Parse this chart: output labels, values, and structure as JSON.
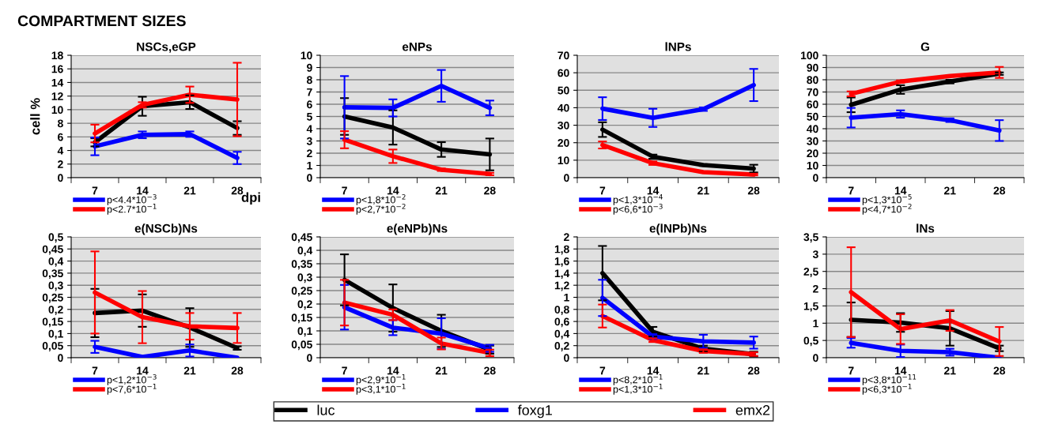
{
  "chart_data": [
    {
      "type": "line",
      "title": "NSCs,eGP",
      "xlabel": "dpi",
      "ylabel": "cell %",
      "categories": [
        "7",
        "14",
        "21",
        "28"
      ],
      "ylim": [
        0,
        18
      ],
      "yticks": [
        0,
        2,
        4,
        6,
        8,
        10,
        12,
        14,
        16,
        18
      ],
      "grid": "y",
      "legend": "bottom",
      "marker": "none",
      "line_style": "solid",
      "annotations": [
        "COMPARTMENT SIZES",
        "p<4.4*10$^{−3}$",
        "p<2.7*10$^{−1}$"
      ],
      "series": [
        {
          "name": "luc",
          "color": "#000000",
          "values": [
            5.2,
            10.5,
            11.1,
            7.3
          ],
          "errors": [
            0.6,
            1.4,
            1.0,
            1.0
          ]
        },
        {
          "name": "foxg1",
          "color": "#0000ff",
          "values": [
            4.6,
            6.3,
            6.4,
            2.9
          ],
          "errors": [
            1.3,
            0.5,
            0.4,
            0.9
          ]
        },
        {
          "name": "emx2",
          "color": "#ff0000",
          "values": [
            6.5,
            10.7,
            12.2,
            11.5
          ],
          "errors": [
            1.3,
            0.4,
            1.2,
            5.4
          ]
        }
      ]
    },
    {
      "type": "line",
      "title": "eNPs",
      "categories": [
        "7",
        "14",
        "21",
        "28"
      ],
      "ylim": [
        0,
        10
      ],
      "yticks": [
        0,
        1,
        2,
        3,
        4,
        5,
        6,
        7,
        8,
        9,
        10
      ],
      "grid": "y",
      "legend": "bottom",
      "marker": "none",
      "line_style": "solid",
      "annotations": [
        "p<1,8*10$^{−2}$",
        "p<2,7*10$^{−2}$"
      ],
      "series": [
        {
          "name": "luc",
          "color": "#000000",
          "values": [
            5.0,
            4.1,
            2.3,
            1.9
          ],
          "errors": [
            1.5,
            1.4,
            0.6,
            1.3
          ]
        },
        {
          "name": "foxg1",
          "color": "#0000ff",
          "values": [
            5.75,
            5.7,
            7.5,
            5.7
          ],
          "errors": [
            2.55,
            0.7,
            1.3,
            0.6
          ]
        },
        {
          "name": "emx2",
          "color": "#ff0000",
          "values": [
            3.1,
            1.75,
            0.65,
            0.3
          ],
          "errors": [
            0.7,
            0.55,
            0.1,
            0.1
          ]
        }
      ]
    },
    {
      "type": "line",
      "title": "lNPs",
      "categories": [
        "7",
        "14",
        "21",
        "28"
      ],
      "ylim": [
        0,
        70
      ],
      "yticks": [
        0,
        10,
        20,
        30,
        40,
        50,
        60,
        70
      ],
      "grid": "y",
      "legend": "bottom",
      "marker": "none",
      "line_style": "solid",
      "annotations": [
        "p<1,3*10$^{−4}$",
        "p<6,6*10$^{−3}$"
      ],
      "series": [
        {
          "name": "luc",
          "color": "#000000",
          "values": [
            27.5,
            12,
            7.2,
            5.2
          ],
          "errors": [
            4.2,
            1.2,
            0.5,
            2.2
          ]
        },
        {
          "name": "foxg1",
          "color": "#0000ff",
          "values": [
            39.5,
            34.2,
            39.2,
            53
          ],
          "errors": [
            6.5,
            5.2,
            1,
            9.2
          ]
        },
        {
          "name": "emx2",
          "color": "#ff0000",
          "values": [
            18.7,
            8.3,
            3.2,
            1.8
          ],
          "errors": [
            2,
            1,
            0.3,
            0.5
          ]
        }
      ]
    },
    {
      "type": "line",
      "title": "G",
      "categories": [
        "7",
        "14",
        "21",
        "28"
      ],
      "ylim": [
        0,
        100
      ],
      "yticks": [
        0,
        10,
        20,
        30,
        40,
        50,
        60,
        70,
        80,
        90,
        100
      ],
      "grid": "y",
      "legend": "bottom",
      "marker": "none",
      "line_style": "solid",
      "annotations": [
        "p<1,3*10$^{−5}$",
        "p<4,7*10$^{−2}$"
      ],
      "series": [
        {
          "name": "luc",
          "color": "#000000",
          "values": [
            59.5,
            72,
            78.5,
            85
          ],
          "errors": [
            6,
            3.5,
            1.5,
            1
          ]
        },
        {
          "name": "foxg1",
          "color": "#0000ff",
          "values": [
            49,
            52,
            47,
            38.5
          ],
          "errors": [
            8,
            3,
            1.5,
            8.5
          ]
        },
        {
          "name": "emx2",
          "color": "#ff0000",
          "values": [
            68.5,
            78.5,
            83,
            86
          ],
          "errors": [
            2,
            1,
            0.5,
            4.5
          ]
        }
      ]
    },
    {
      "type": "line",
      "title": "e(NSCb)Ns",
      "categories": [
        "7",
        "14",
        "21",
        "28"
      ],
      "ylim": [
        0,
        0.5
      ],
      "yticks": [
        0,
        {
          "value": 0.05,
          "label": "0,05"
        },
        {
          "value": 0.1,
          "label": "0,1"
        },
        {
          "value": 0.15,
          "label": "0,15"
        },
        {
          "value": 0.2,
          "label": "0,2"
        },
        {
          "value": 0.25,
          "label": "0,25"
        },
        {
          "value": 0.3,
          "label": "0,3"
        },
        {
          "value": 0.35,
          "label": "0,35"
        },
        {
          "value": 0.4,
          "label": "0,4"
        },
        {
          "value": 0.45,
          "label": "0,45"
        },
        {
          "value": 0.5,
          "label": "0,5"
        }
      ],
      "grid": "y",
      "legend": "bottom",
      "marker": "none",
      "line_style": "solid",
      "annotations": [
        "p<1,2*10$^{−3}$",
        "p<7,6*10$^{−1}$"
      ],
      "series": [
        {
          "name": "luc",
          "color": "#000000",
          "values": [
            0.185,
            0.195,
            0.125,
            0.04
          ],
          "errors": [
            0.1,
            0.067,
            0.08,
            0.007
          ]
        },
        {
          "name": "foxg1",
          "color": "#0000ff",
          "values": [
            0.045,
            0.003,
            0.03,
            0
          ],
          "errors": [
            0.025,
            null,
            0.025,
            null
          ]
        },
        {
          "name": "emx2",
          "color": "#ff0000",
          "values": [
            0.27,
            0.168,
            0.13,
            0.123
          ],
          "errors": [
            0.17,
            0.108,
            0.055,
            0.062
          ]
        }
      ]
    },
    {
      "type": "line",
      "title": "e(eNPb)Ns",
      "categories": [
        "7",
        "14",
        "21",
        "28"
      ],
      "ylim": [
        0,
        0.45
      ],
      "yticks": [
        0,
        {
          "value": 0.05,
          "label": "0,05"
        },
        {
          "value": 0.1,
          "label": "0,1"
        },
        {
          "value": 0.15,
          "label": "0,15"
        },
        {
          "value": 0.2,
          "label": "0,2"
        },
        {
          "value": 0.25,
          "label": "0,25"
        },
        {
          "value": 0.3,
          "label": "0,3"
        },
        {
          "value": 0.35,
          "label": "0,35"
        },
        {
          "value": 0.4,
          "label": "0,4"
        },
        {
          "value": 0.45,
          "label": "0,45"
        }
      ],
      "grid": "y",
      "legend": "bottom",
      "marker": "none",
      "line_style": "solid",
      "annotations": [
        "p<2,9*10$^{−1}$",
        "p<3,1*10$^{−1}$"
      ],
      "series": [
        {
          "name": "luc",
          "color": "#000000",
          "values": [
            0.29,
            0.185,
            0.1,
            0.03
          ],
          "errors": [
            0.095,
            0.088,
            0.06,
            0.015
          ]
        },
        {
          "name": "foxg1",
          "color": "#0000ff",
          "values": [
            0.188,
            0.112,
            0.09,
            0.035
          ],
          "errors": [
            0.083,
            0.028,
            0.057,
            0.013
          ]
        },
        {
          "name": "emx2",
          "color": "#ff0000",
          "values": [
            0.205,
            0.16,
            0.053,
            0.018
          ],
          "errors": [
            0.085,
            0.02,
            0.022,
            0.012
          ]
        }
      ]
    },
    {
      "type": "line",
      "title": "e(lNPb)Ns",
      "categories": [
        "7",
        "14",
        "21",
        "28"
      ],
      "ylim": [
        0,
        2
      ],
      "yticks": [
        0,
        {
          "value": 0.2,
          "label": "0,2"
        },
        {
          "value": 0.4,
          "label": "0,4"
        },
        {
          "value": 0.6,
          "label": "0,6"
        },
        {
          "value": 0.8,
          "label": "0,8"
        },
        1,
        {
          "value": 1.2,
          "label": "1,2"
        },
        {
          "value": 1.4,
          "label": "1,4"
        },
        {
          "value": 1.6,
          "label": "1,6"
        },
        {
          "value": 1.8,
          "label": "1,8"
        },
        2
      ],
      "grid": "y",
      "legend": "bottom",
      "marker": "none",
      "line_style": "solid",
      "annotations": [
        "p<8,2*10$^{−1}$",
        "p<1,3*10$^{−1}$"
      ],
      "series": [
        {
          "name": "luc",
          "color": "#000000",
          "values": [
            1.4,
            0.43,
            0.15,
            0.06
          ],
          "errors": [
            0.45,
            0.08,
            0.05,
            0.04
          ]
        },
        {
          "name": "foxg1",
          "color": "#0000ff",
          "values": [
            0.99,
            0.35,
            0.27,
            0.25
          ],
          "errors": [
            0.3,
            0.04,
            0.11,
            0.1
          ]
        },
        {
          "name": "emx2",
          "color": "#ff0000",
          "values": [
            0.69,
            0.29,
            0.11,
            0.06
          ],
          "errors": [
            0.19,
            0.03,
            0.03,
            0.03
          ]
        }
      ]
    },
    {
      "type": "line",
      "title": "lNs",
      "categories": [
        "7",
        "14",
        "21",
        "28"
      ],
      "ylim": [
        0,
        3.5
      ],
      "yticks": [
        0,
        {
          "value": 0.5,
          "label": "0,5"
        },
        1,
        {
          "value": 1.5,
          "label": "1,5"
        },
        2,
        {
          "value": 2.5,
          "label": "2,5"
        },
        3,
        {
          "value": 3.5,
          "label": "3,5"
        }
      ],
      "grid": "y",
      "legend": "bottom",
      "marker": "none",
      "line_style": "solid",
      "annotations": [
        "p<3,8*10$^{−11}$",
        "p<6,3*10$^{−1}$"
      ],
      "series": [
        {
          "name": "luc",
          "color": "#000000",
          "values": [
            1.1,
            1.02,
            0.85,
            0.27
          ],
          "errors": [
            0.5,
            0.27,
            0.5,
            0.08
          ]
        },
        {
          "name": "foxg1",
          "color": "#0000ff",
          "values": [
            0.43,
            0.2,
            0.16,
            0
          ],
          "errors": [
            0.14,
            0.18,
            0.1,
            null
          ]
        },
        {
          "name": "emx2",
          "color": "#ff0000",
          "values": [
            1.9,
            0.83,
            1.08,
            0.47
          ],
          "errors": [
            1.3,
            0.43,
            0.3,
            0.42
          ]
        }
      ]
    }
  ]
}
